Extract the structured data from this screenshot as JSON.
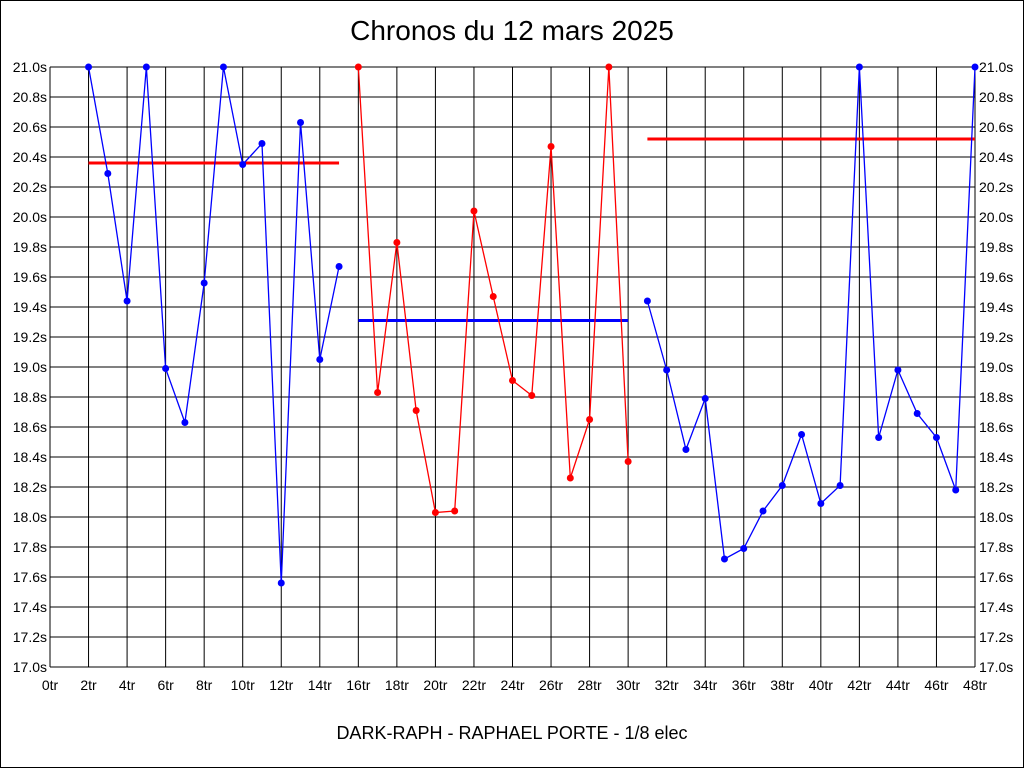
{
  "chart_data": {
    "type": "line",
    "title": "Chronos du 12 mars 2025",
    "xlabel": "DARK-RAPH - RAPHAEL PORTE - 1/8 elec",
    "ylabel": "",
    "xlim": [
      0,
      48
    ],
    "ylim": [
      17.0,
      21.0
    ],
    "grid": true,
    "x_tick_step": 2,
    "y_tick_step": 0.2,
    "x_tick_suffix": "tr",
    "y_tick_suffix": "s",
    "y_ticks_both_sides": true,
    "series": [
      {
        "color": "#0000ff",
        "x": [
          2,
          3,
          4,
          5,
          6,
          7,
          8,
          9,
          10,
          11,
          12,
          13,
          14,
          15
        ],
        "values": [
          21.0,
          20.29,
          19.44,
          21.0,
          18.99,
          18.63,
          19.56,
          21.0,
          20.35,
          20.49,
          17.56,
          20.63,
          19.05,
          19.67
        ]
      },
      {
        "color": "#ff0000",
        "x": [
          16,
          17,
          18,
          19,
          20,
          21,
          22,
          23,
          24,
          25,
          26,
          27,
          28,
          29,
          30
        ],
        "values": [
          21.0,
          18.83,
          19.83,
          18.71,
          18.03,
          18.04,
          20.04,
          19.47,
          18.91,
          18.81,
          20.47,
          18.26,
          18.65,
          21.0,
          18.37
        ]
      },
      {
        "color": "#0000ff",
        "x": [
          31,
          32,
          33,
          34,
          35,
          36,
          37,
          38,
          39,
          40,
          41,
          42,
          43,
          44,
          45,
          46,
          47,
          48
        ],
        "values": [
          19.44,
          18.98,
          18.45,
          18.79,
          17.72,
          17.79,
          18.04,
          18.21,
          18.55,
          18.09,
          18.21,
          21.0,
          18.53,
          18.98,
          18.69,
          18.53,
          18.18,
          21.0
        ]
      }
    ],
    "mean_lines": [
      {
        "color": "#ff0000",
        "x_from": 2,
        "x_to": 15,
        "value": 20.36
      },
      {
        "color": "#0000ff",
        "x_from": 16,
        "x_to": 30,
        "value": 19.31
      },
      {
        "color": "#ff0000",
        "x_from": 31,
        "x_to": 48,
        "value": 20.52
      }
    ]
  }
}
